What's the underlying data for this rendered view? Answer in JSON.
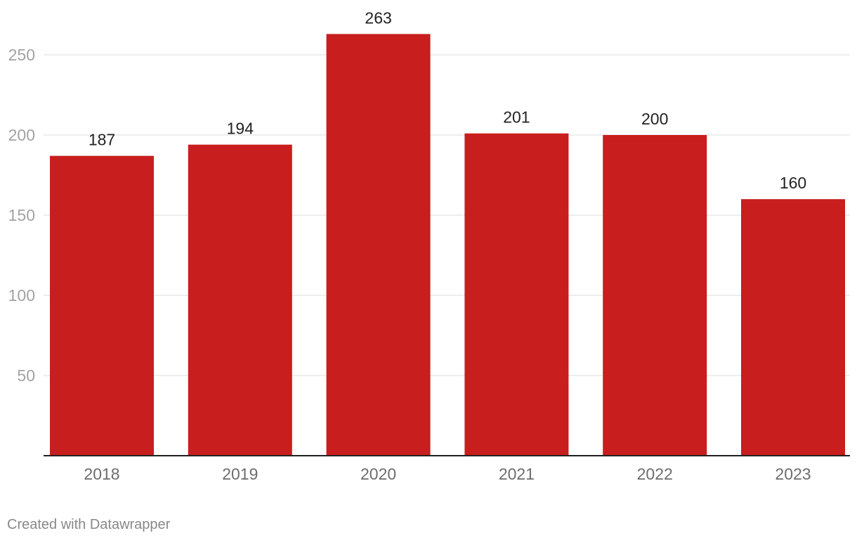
{
  "chart_data": {
    "type": "bar",
    "categories": [
      "2018",
      "2019",
      "2020",
      "2021",
      "2022",
      "2023"
    ],
    "values": [
      187,
      194,
      263,
      201,
      200,
      160
    ],
    "value_labels": [
      "187",
      "194",
      "263",
      "201",
      "200",
      "160"
    ],
    "title": "",
    "xlabel": "",
    "ylabel": "",
    "ylim": [
      0,
      263
    ],
    "yticks": [
      50,
      100,
      150,
      200,
      250
    ],
    "grid": true,
    "bar_color": "#c81e1e",
    "grid_color": "#e3e3e3",
    "baseline_color": "#222222"
  },
  "footer": {
    "credit": "Created with Datawrapper"
  }
}
